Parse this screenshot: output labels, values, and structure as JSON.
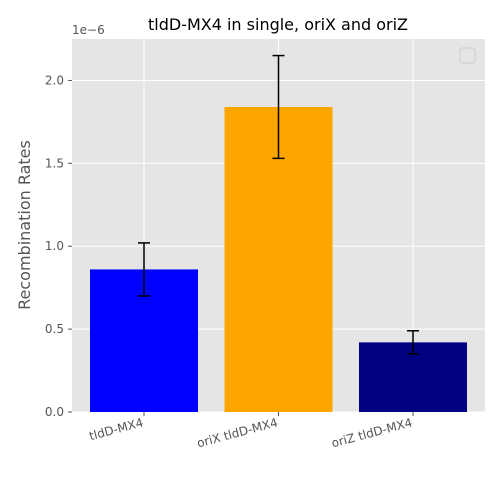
{
  "chart_data": {
    "type": "bar",
    "title": "tldD-MX4 in single, oriX and oriZ",
    "xlabel": "",
    "ylabel": "Recombination Rates",
    "y_offset_label": "1e−6",
    "ylim": [
      0,
      2.25
    ],
    "yticks": [
      "0.0",
      "0.5",
      "1.0",
      "1.5",
      "2.0"
    ],
    "categories": [
      "tldD-MX4",
      "oriX tldD-MX4",
      "oriZ tldD-MX4"
    ],
    "values": [
      0.86,
      1.84,
      0.42
    ],
    "errors": [
      0.16,
      0.31,
      0.07
    ],
    "bar_colors": [
      "#0000ff",
      "#ffa500",
      "#000080"
    ],
    "grid": true,
    "legend": "top-right, empty",
    "style": {
      "axes_bg": "#e5e5e5",
      "grid_color": "#ffffff",
      "error_color": "#000000"
    }
  }
}
